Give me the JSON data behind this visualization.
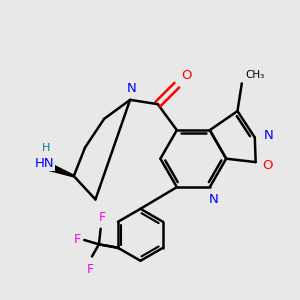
{
  "background_color": "#e8e8e8",
  "bond_color": "#000000",
  "N_color": "#0000ff",
  "O_color": "#ff0000",
  "F_color": "#ff00ff",
  "H_color": "#008080",
  "figsize": [
    3.0,
    3.0
  ],
  "dpi": 100,
  "xlim": [
    -0.2,
    3.0
  ],
  "ylim": [
    -0.3,
    3.1
  ]
}
